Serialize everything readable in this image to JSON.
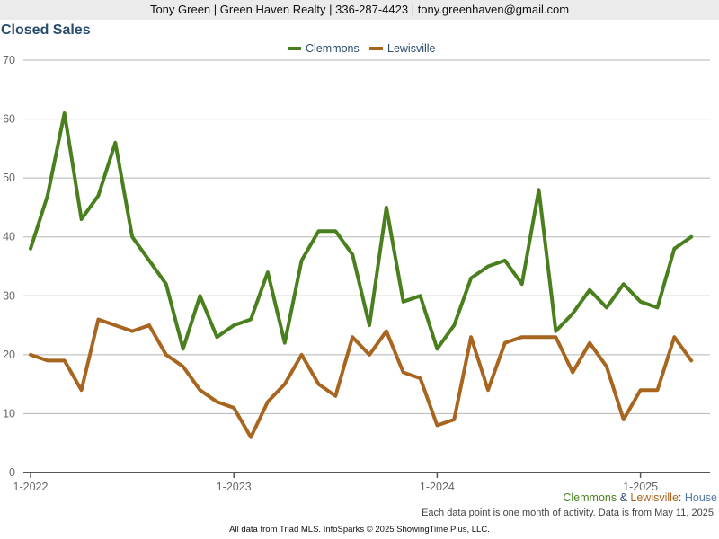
{
  "header": {
    "contact": "Tony Green | Green Haven Realty | 336-287-4423 | tony.greenhaven@gmail.com"
  },
  "subtitle": {
    "area1": "Clemmons",
    "amp": " & ",
    "area2": "Lewisville",
    "sep": ": ",
    "property_type": "House"
  },
  "note": "Each data point is one month of activity. Data is from May 11, 2025.",
  "footer": "All data from Triad MLS. InfoSparks © 2025 ShowingTime Plus, LLC.",
  "colors": {
    "clemmons": "#4a7f1e",
    "lewisville": "#a8651f",
    "title": "#2a4d6e",
    "grid": "#b5b5b5",
    "axis": "#555555",
    "tick_label": "#666666"
  },
  "chart_data": {
    "type": "line",
    "title": "Closed Sales",
    "xlabel": "",
    "ylabel": "",
    "ylim": [
      0,
      70
    ],
    "yticks": [
      0,
      10,
      20,
      30,
      40,
      50,
      60,
      70
    ],
    "grid": true,
    "legend_position": "top-center",
    "x_start": "2022-01",
    "x_tick_labels": [
      "1-2022",
      "1-2023",
      "1-2024",
      "1-2025"
    ],
    "x": [
      "2022-01",
      "2022-02",
      "2022-03",
      "2022-04",
      "2022-05",
      "2022-06",
      "2022-07",
      "2022-08",
      "2022-09",
      "2022-10",
      "2022-11",
      "2022-12",
      "2023-01",
      "2023-02",
      "2023-03",
      "2023-04",
      "2023-05",
      "2023-06",
      "2023-07",
      "2023-08",
      "2023-09",
      "2023-10",
      "2023-11",
      "2023-12",
      "2024-01",
      "2024-02",
      "2024-03",
      "2024-04",
      "2024-05",
      "2024-06",
      "2024-07",
      "2024-08",
      "2024-09",
      "2024-10",
      "2024-11",
      "2024-12",
      "2025-01",
      "2025-02",
      "2025-03",
      "2025-04"
    ],
    "series": [
      {
        "name": "Clemmons",
        "color": "#4a7f1e",
        "values": [
          38,
          47,
          61,
          43,
          47,
          56,
          40,
          36,
          32,
          21,
          30,
          23,
          25,
          26,
          34,
          22,
          36,
          41,
          41,
          37,
          25,
          45,
          29,
          30,
          21,
          25,
          33,
          35,
          36,
          32,
          48,
          24,
          27,
          31,
          28,
          32,
          29,
          28,
          38,
          40
        ]
      },
      {
        "name": "Lewisville",
        "color": "#a8651f",
        "values": [
          20,
          19,
          19,
          14,
          26,
          25,
          24,
          25,
          20,
          18,
          14,
          12,
          11,
          6,
          12,
          15,
          20,
          15,
          13,
          23,
          20,
          24,
          17,
          16,
          8,
          9,
          23,
          14,
          22,
          23,
          23,
          23,
          17,
          22,
          18,
          9,
          14,
          14,
          23,
          19
        ]
      }
    ]
  }
}
